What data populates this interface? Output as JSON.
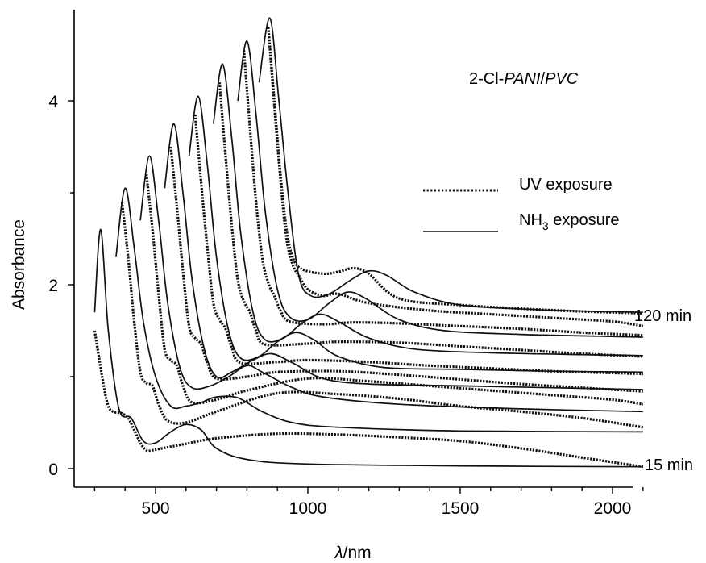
{
  "chart_data": {
    "type": "line",
    "title": "2-Cl-PANI/PVC",
    "title_prefix": "2-Cl-",
    "title_mid": "PANI",
    "title_sep": "/",
    "title_suffix": "PVC",
    "xlabel": "λ/nm",
    "xlabel_symbol": "λ",
    "xlabel_unit": "/nm",
    "ylabel": "Absorbance",
    "xlim": [
      230,
      2100
    ],
    "ylim": [
      -0.18,
      5.0
    ],
    "x_ticks": [
      500,
      1000,
      1500,
      2000
    ],
    "x_tick_labels": [
      "500",
      "1000",
      "1500",
      "2000"
    ],
    "y_ticks": [
      0,
      2,
      4
    ],
    "y_tick_labels": [
      "0",
      "2",
      "4"
    ],
    "grid": false,
    "legend": {
      "placement": "right",
      "entries": [
        {
          "style": "dotted",
          "label": "UV  exposure",
          "label_prefix": "UV  exposure",
          "label_sub": "",
          "label_suffix": ""
        },
        {
          "style": "solid",
          "label": "NH3 exposure",
          "label_prefix": "NH",
          "label_sub": "3",
          "label_suffix": " exposure"
        }
      ]
    },
    "annotations": {
      "top_curve": "120 min",
      "bottom_curve": "15 min"
    },
    "n_time_steps": 9,
    "uv_series": [
      {
        "x": [
          300,
          330,
          345,
          360,
          375,
          390,
          410,
          430,
          450,
          470,
          490,
          520,
          600,
          700,
          900,
          1100,
          1300,
          1500,
          1700,
          1900,
          2100
        ],
        "y": [
          1.5,
          0.9,
          0.68,
          0.62,
          0.61,
          0.6,
          0.55,
          0.42,
          0.28,
          0.2,
          0.2,
          0.22,
          0.27,
          0.33,
          0.38,
          0.37,
          0.34,
          0.3,
          0.22,
          0.12,
          0.02
        ]
      },
      {
        "x": [
          390,
          410,
          430,
          450,
          470,
          490,
          510,
          540,
          600,
          700,
          900,
          1100,
          1300,
          1500,
          1700,
          1900,
          2100
        ],
        "y": [
          2.9,
          2.3,
          1.6,
          1.05,
          0.93,
          0.9,
          0.7,
          0.52,
          0.5,
          0.62,
          0.82,
          0.81,
          0.76,
          0.68,
          0.62,
          0.55,
          0.45
        ]
      },
      {
        "x": [
          470,
          490,
          510,
          530,
          550,
          570,
          590,
          620,
          700,
          800,
          1000,
          1200,
          1400,
          1600,
          1800,
          2000,
          2100
        ],
        "y": [
          3.2,
          2.6,
          1.9,
          1.3,
          1.18,
          1.12,
          0.9,
          0.72,
          0.75,
          0.85,
          0.98,
          0.95,
          0.9,
          0.85,
          0.8,
          0.75,
          0.7
        ]
      },
      {
        "x": [
          550,
          570,
          590,
          610,
          630,
          650,
          670,
          700,
          800,
          900,
          1100,
          1300,
          1500,
          1700,
          1900,
          2100
        ],
        "y": [
          3.5,
          2.85,
          2.15,
          1.55,
          1.42,
          1.35,
          1.15,
          0.98,
          1.0,
          1.05,
          1.06,
          1.02,
          0.97,
          0.92,
          0.88,
          0.84
        ]
      },
      {
        "x": [
          630,
          650,
          670,
          690,
          710,
          730,
          750,
          780,
          900,
          1000,
          1200,
          1400,
          1600,
          1800,
          2000,
          2100
        ],
        "y": [
          3.85,
          3.1,
          2.4,
          1.8,
          1.62,
          1.52,
          1.32,
          1.15,
          1.16,
          1.18,
          1.16,
          1.12,
          1.09,
          1.06,
          1.04,
          1.03
        ]
      },
      {
        "x": [
          710,
          730,
          750,
          770,
          790,
          810,
          830,
          860,
          1000,
          1100,
          1300,
          1500,
          1700,
          1900,
          2100
        ],
        "y": [
          4.2,
          3.4,
          2.65,
          2.05,
          1.82,
          1.7,
          1.5,
          1.35,
          1.36,
          1.38,
          1.37,
          1.33,
          1.29,
          1.25,
          1.22
        ]
      },
      {
        "x": [
          790,
          810,
          830,
          850,
          870,
          890,
          910,
          940,
          1050,
          1150,
          1300,
          1500,
          1700,
          1900,
          2100
        ],
        "y": [
          4.55,
          3.7,
          2.9,
          2.3,
          2.02,
          1.88,
          1.72,
          1.6,
          1.57,
          1.59,
          1.58,
          1.55,
          1.52,
          1.48,
          1.45
        ]
      },
      {
        "x": [
          870,
          890,
          910,
          930,
          950,
          970,
          1000,
          1050,
          1100,
          1200,
          1400,
          1600,
          1800,
          2000,
          2100
        ],
        "y": [
          4.8,
          3.95,
          3.15,
          2.5,
          2.22,
          2.1,
          1.95,
          1.88,
          1.9,
          1.8,
          1.72,
          1.68,
          1.64,
          1.6,
          1.55
        ]
      },
      {
        "x": [
          870,
          890,
          910,
          930,
          950,
          980,
          1050,
          1100,
          1150,
          1200,
          1300,
          1500,
          1700,
          1900,
          2100
        ],
        "y": [
          4.8,
          4.0,
          3.2,
          2.6,
          2.3,
          2.17,
          2.12,
          2.14,
          2.18,
          2.12,
          1.85,
          1.78,
          1.74,
          1.71,
          1.69
        ]
      }
    ],
    "nh3_series": [
      {
        "x": [
          300,
          320,
          345,
          380,
          420,
          460,
          500,
          550,
          600,
          650,
          700,
          800,
          1000,
          1500,
          2100
        ],
        "y": [
          1.7,
          2.6,
          1.5,
          0.65,
          0.55,
          0.3,
          0.28,
          0.4,
          0.48,
          0.42,
          0.22,
          0.1,
          0.05,
          0.03,
          0.02
        ]
      },
      {
        "x": [
          370,
          400,
          430,
          460,
          500,
          550,
          600,
          650,
          700,
          770,
          850,
          950,
          1100,
          1500,
          2100
        ],
        "y": [
          2.3,
          3.05,
          2.4,
          1.6,
          1.0,
          0.68,
          0.68,
          0.72,
          0.78,
          0.77,
          0.62,
          0.5,
          0.45,
          0.41,
          0.4
        ]
      },
      {
        "x": [
          450,
          480,
          510,
          540,
          580,
          620,
          680,
          740,
          800,
          850,
          950,
          1050,
          1300,
          1700,
          2100
        ],
        "y": [
          2.7,
          3.4,
          2.7,
          1.8,
          1.1,
          0.88,
          0.9,
          1.0,
          1.12,
          1.05,
          0.88,
          0.78,
          0.7,
          0.65,
          0.62
        ]
      },
      {
        "x": [
          530,
          560,
          590,
          620,
          660,
          700,
          750,
          820,
          880,
          950,
          1050,
          1200,
          1500,
          1800,
          2100
        ],
        "y": [
          3.05,
          3.75,
          3.0,
          2.05,
          1.3,
          1.0,
          1.05,
          1.18,
          1.25,
          1.15,
          0.98,
          0.92,
          0.9,
          0.88,
          0.86
        ]
      },
      {
        "x": [
          610,
          640,
          670,
          700,
          740,
          780,
          840,
          900,
          960,
          1020,
          1100,
          1250,
          1500,
          1800,
          2100
        ],
        "y": [
          3.4,
          4.05,
          3.3,
          2.3,
          1.5,
          1.2,
          1.22,
          1.38,
          1.48,
          1.4,
          1.22,
          1.1,
          1.08,
          1.06,
          1.05
        ]
      },
      {
        "x": [
          690,
          720,
          750,
          780,
          820,
          860,
          920,
          980,
          1040,
          1100,
          1200,
          1350,
          1600,
          1900,
          2100
        ],
        "y": [
          3.75,
          4.4,
          3.6,
          2.55,
          1.7,
          1.4,
          1.42,
          1.58,
          1.68,
          1.6,
          1.42,
          1.3,
          1.26,
          1.24,
          1.23
        ]
      },
      {
        "x": [
          770,
          800,
          830,
          860,
          900,
          940,
          1000,
          1070,
          1130,
          1190,
          1300,
          1450,
          1700,
          1950,
          2100
        ],
        "y": [
          4.0,
          4.65,
          3.85,
          2.8,
          1.95,
          1.65,
          1.62,
          1.8,
          1.92,
          1.85,
          1.62,
          1.5,
          1.46,
          1.44,
          1.43
        ]
      },
      {
        "x": [
          840,
          875,
          905,
          935,
          970,
          1010,
          1070,
          1140,
          1200,
          1260,
          1350,
          1500,
          1750,
          1950,
          2100
        ],
        "y": [
          4.2,
          4.9,
          4.0,
          3.0,
          2.1,
          1.88,
          1.9,
          2.05,
          2.15,
          2.1,
          1.92,
          1.78,
          1.73,
          1.71,
          1.7
        ]
      }
    ]
  }
}
